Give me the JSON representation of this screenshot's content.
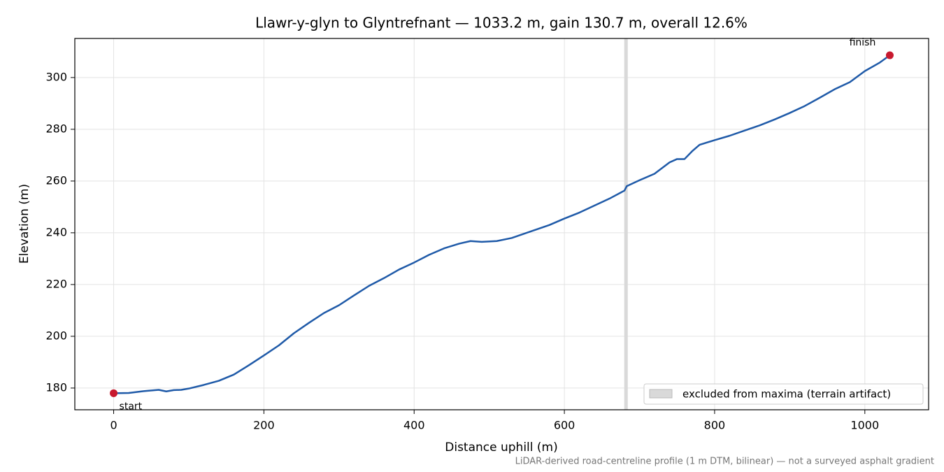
{
  "chart_data": {
    "type": "line",
    "title": "Llawr-y-glyn to Glyntrefnant — 1033.2 m, gain 130.7 m, overall 12.6%",
    "xlabel": "Distance uphill (m)",
    "ylabel": "Elevation (m)",
    "footnote": "LiDAR-derived road-centreline profile (1 m DTM, bilinear) — not a surveyed asphalt gradient",
    "x": [
      0,
      20,
      40,
      60,
      70,
      80,
      90,
      100,
      120,
      140,
      160,
      180,
      200,
      220,
      240,
      260,
      280,
      300,
      320,
      340,
      360,
      380,
      400,
      420,
      440,
      460,
      475,
      490,
      510,
      530,
      560,
      580,
      600,
      620,
      640,
      660,
      680,
      683,
      700,
      720,
      740,
      750,
      760,
      770,
      780,
      800,
      820,
      840,
      860,
      880,
      900,
      920,
      940,
      960,
      980,
      1000,
      1020,
      1033.2
    ],
    "series": [
      {
        "color": "#1f5aa8",
        "values": [
          178,
          178.1,
          178.8,
          179.3,
          178.7,
          179.2,
          179.3,
          179.8,
          181.2,
          182.8,
          185.2,
          188.8,
          192.6,
          196.5,
          201.2,
          205.2,
          209,
          212,
          215.8,
          219.5,
          222.5,
          225.8,
          228.5,
          231.5,
          234,
          235.8,
          236.8,
          236.5,
          236.8,
          238,
          241,
          243,
          245.5,
          247.8,
          250.5,
          253.2,
          256.3,
          258,
          260.3,
          262.8,
          267.2,
          268.5,
          268.5,
          271.5,
          274,
          275.8,
          277.5,
          279.5,
          281.5,
          283.8,
          286.3,
          289,
          292.2,
          295.5,
          298.2,
          302.5,
          305.8,
          308.6
        ]
      }
    ],
    "points": [
      {
        "x": 0,
        "y": 178,
        "label": "start",
        "color": "#c8192e"
      },
      {
        "x": 1033.2,
        "y": 308.6,
        "label": "finish",
        "color": "#c8192e"
      }
    ],
    "spans": [
      {
        "x0": 679.7,
        "x1": 684.4,
        "label": "excluded from maxima (terrain artifact)",
        "color": "#d9d9d9"
      }
    ],
    "xlim": [
      -51.7,
      1084.9
    ],
    "ylim": [
      171.6,
      315.1
    ],
    "xticks": [
      0,
      200,
      400,
      600,
      800,
      1000
    ],
    "yticks": [
      180,
      200,
      220,
      240,
      260,
      280,
      300
    ],
    "grid": true,
    "legend": "lower right"
  }
}
